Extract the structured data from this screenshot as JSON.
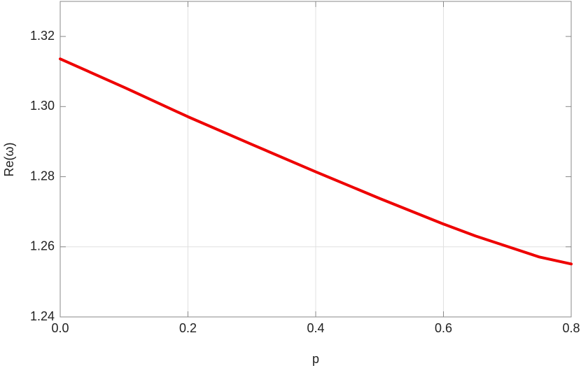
{
  "chart_data": {
    "type": "line",
    "xlabel": "p",
    "ylabel": "Re(ω)",
    "x": [
      0,
      0.1,
      0.2,
      0.3,
      0.4,
      0.5,
      0.6,
      0.65,
      0.7,
      0.75,
      0.8
    ],
    "series": [
      {
        "color": "#ee0000",
        "values": [
          1.3136,
          1.3055,
          1.2971,
          1.2892,
          1.2814,
          1.2738,
          1.2665,
          1.2631,
          1.2601,
          1.2571,
          1.2551
        ]
      }
    ],
    "xlim": [
      0,
      0.8
    ],
    "ylim": [
      1.24,
      1.33
    ],
    "xticks": [
      {
        "value": 0,
        "label": "0.0"
      },
      0.2,
      0.4,
      0.6,
      0.8
    ],
    "yticks": [
      1.24,
      1.26,
      1.28,
      {
        "value": 1.3,
        "label": "1.30"
      },
      1.32
    ],
    "xgrid": [
      0.2,
      0.4,
      0.6
    ],
    "ygrid": [
      1.26
    ]
  }
}
